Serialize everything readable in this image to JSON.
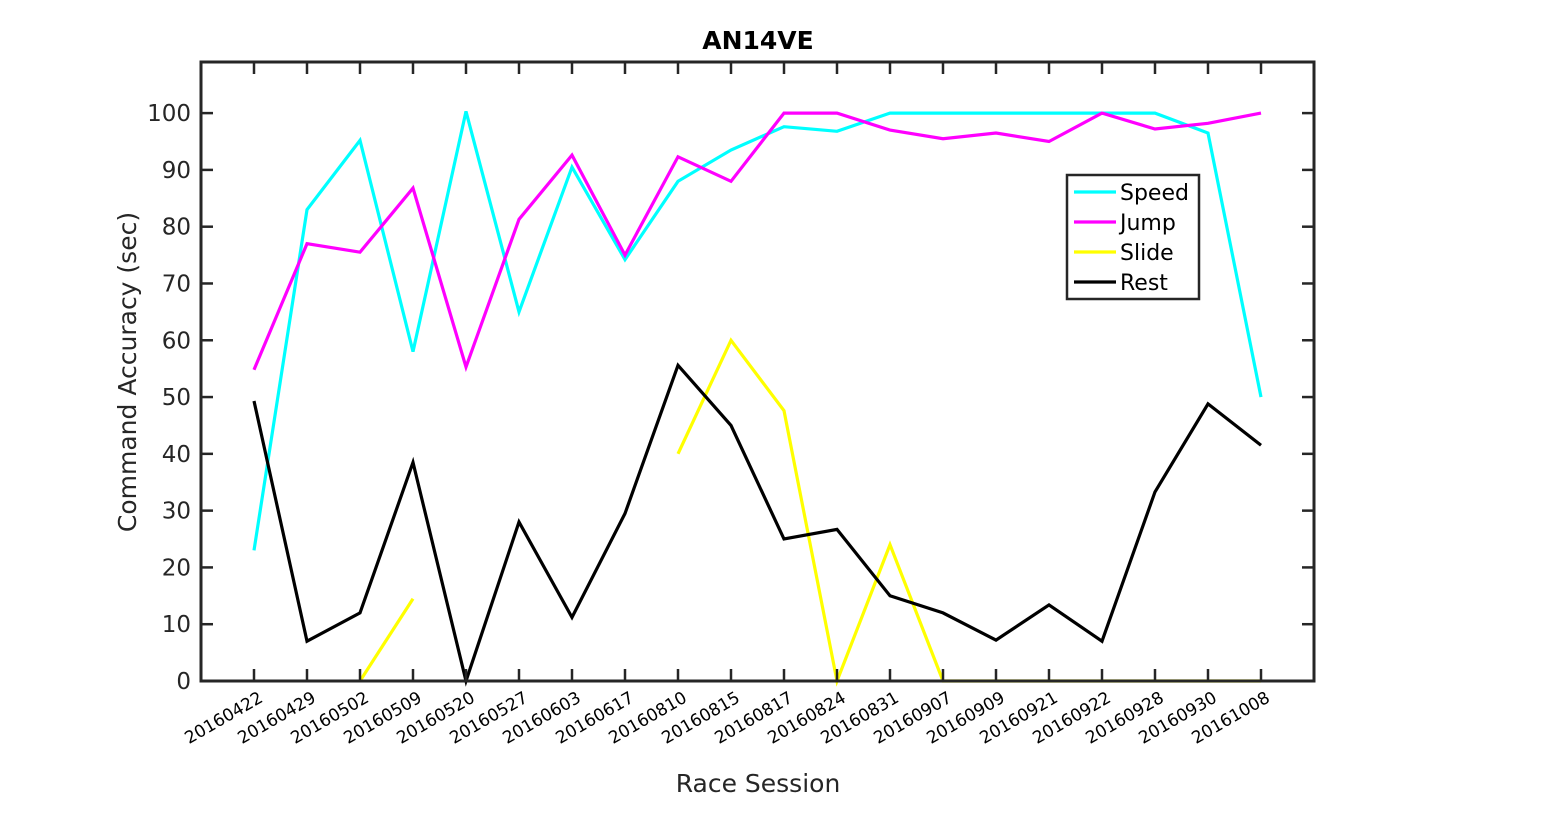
{
  "chart_data": {
    "type": "line",
    "title": "AN14VE",
    "xlabel": "Race Session",
    "ylabel": "Command Accuracy (sec)",
    "ylim": [
      0,
      109
    ],
    "yticks": [
      0,
      10,
      20,
      30,
      40,
      50,
      60,
      70,
      80,
      90,
      100
    ],
    "grid": false,
    "legend_position": "upper-right",
    "categories": [
      "20160422",
      "20160429",
      "20160502",
      "20160509",
      "20160520",
      "20160527",
      "20160603",
      "20160617",
      "20160810",
      "20160815",
      "20160817",
      "20160824",
      "20160831",
      "20160907",
      "20160909",
      "20160921",
      "20160922",
      "20160928",
      "20160930",
      "20161008"
    ],
    "series": [
      {
        "name": "Speed",
        "color": "#00ffff",
        "values": [
          23,
          83,
          95.2,
          58,
          100.3,
          65,
          90.5,
          74.2,
          88,
          93.5,
          97.6,
          96.8,
          100,
          100,
          100,
          100,
          100,
          100,
          96.5,
          50
        ]
      },
      {
        "name": "Jump",
        "color": "#ff00ff",
        "values": [
          54.8,
          77,
          75.5,
          86.8,
          55.3,
          81.3,
          92.6,
          75,
          92.3,
          88,
          100,
          100,
          97,
          95.5,
          96.5,
          95,
          100,
          97.2,
          98.2,
          100
        ]
      },
      {
        "name": "Slide",
        "color": "#ffff00",
        "values": [
          null,
          null,
          0,
          14.5,
          null,
          null,
          null,
          null,
          40,
          60,
          47.6,
          0,
          24,
          0,
          0,
          0,
          0,
          0,
          0,
          0
        ]
      },
      {
        "name": "Rest",
        "color": "#000000",
        "values": [
          49.3,
          7,
          12,
          38.5,
          0,
          28,
          11.2,
          29.5,
          55.6,
          45,
          25,
          26.7,
          15,
          12,
          7.2,
          13.4,
          7,
          33.3,
          48.8,
          41.5
        ]
      }
    ]
  }
}
